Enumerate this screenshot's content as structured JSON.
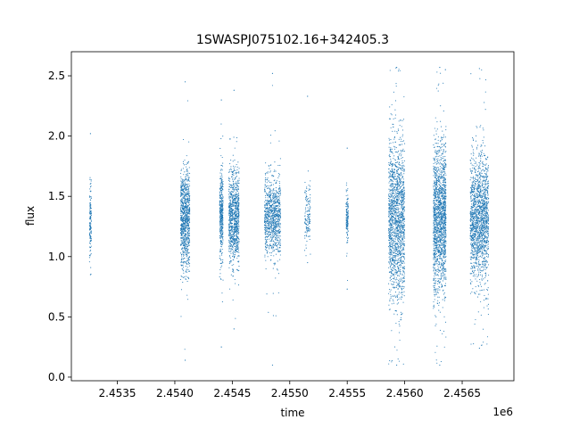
{
  "chart_data": {
    "type": "scatter",
    "title": "1SWASPJ075102.16+342405.3",
    "xlabel": "time",
    "ylabel": "flux",
    "x_offset_label": "1e6",
    "xlim": [
      2453100,
      2456950
    ],
    "ylim": [
      -0.03,
      2.7
    ],
    "x_ticks": [
      2453500,
      2454000,
      2454500,
      2455000,
      2455500,
      2456000,
      2456500
    ],
    "x_tick_labels": [
      "2.4535",
      "2.4540",
      "2.4545",
      "2.4550",
      "2.4555",
      "2.4560",
      "2.4565"
    ],
    "y_ticks": [
      0.0,
      0.5,
      1.0,
      1.5,
      2.0,
      2.5
    ],
    "y_tick_labels": [
      "0.0",
      "0.5",
      "1.0",
      "1.5",
      "2.0",
      "2.5"
    ],
    "grid": false,
    "marker_color": "#1f77b4",
    "observing_seasons": [
      {
        "x_range": [
          2453258,
          2453274
        ],
        "flux_center": 1.3,
        "flux_spread": 0.16,
        "flux_min": 0.85,
        "flux_max": 2.02,
        "density": "sparse"
      },
      {
        "x_range": [
          2454050,
          2454130
        ],
        "flux_center": 1.32,
        "flux_spread": 0.2,
        "flux_min": 0.14,
        "flux_max": 2.45,
        "density": "dense"
      },
      {
        "x_range": [
          2454390,
          2454420
        ],
        "flux_center": 1.33,
        "flux_spread": 0.18,
        "flux_min": 0.25,
        "flux_max": 2.3,
        "density": "medium"
      },
      {
        "x_range": [
          2454470,
          2454560
        ],
        "flux_center": 1.33,
        "flux_spread": 0.19,
        "flux_min": 0.4,
        "flux_max": 2.38,
        "density": "dense"
      },
      {
        "x_range": [
          2454780,
          2454920
        ],
        "flux_center": 1.33,
        "flux_spread": 0.17,
        "flux_min": 0.1,
        "flux_max": 2.52,
        "density": "dense"
      },
      {
        "x_range": [
          2455130,
          2455180
        ],
        "flux_center": 1.35,
        "flux_spread": 0.12,
        "flux_min": 0.95,
        "flux_max": 2.33,
        "density": "sparse"
      },
      {
        "x_range": [
          2455490,
          2455510
        ],
        "flux_center": 1.33,
        "flux_spread": 0.1,
        "flux_min": 0.73,
        "flux_max": 1.9,
        "density": "sparse"
      },
      {
        "x_range": [
          2455860,
          2456000
        ],
        "flux_center": 1.3,
        "flux_spread": 0.33,
        "flux_min": 0.1,
        "flux_max": 2.57,
        "density": "very_dense"
      },
      {
        "x_range": [
          2456250,
          2456360
        ],
        "flux_center": 1.32,
        "flux_spread": 0.3,
        "flux_min": 0.1,
        "flux_max": 2.57,
        "density": "very_dense"
      },
      {
        "x_range": [
          2456570,
          2456730
        ],
        "flux_center": 1.3,
        "flux_spread": 0.26,
        "flux_min": 0.24,
        "flux_max": 2.56,
        "density": "very_dense"
      }
    ]
  }
}
